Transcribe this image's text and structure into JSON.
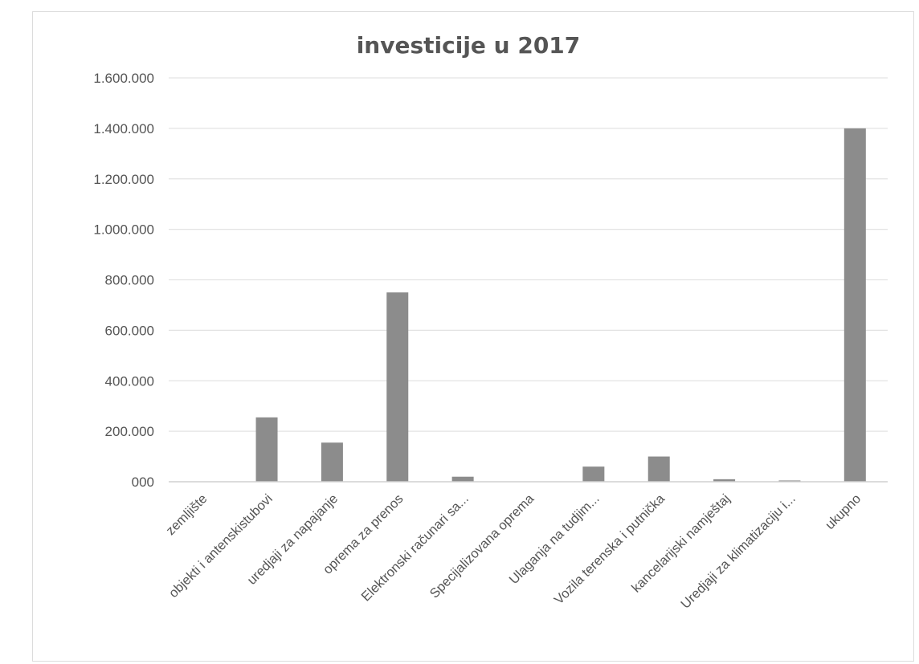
{
  "chart_data": {
    "type": "bar",
    "title": "investicije u 2017",
    "xlabel": "",
    "ylabel": "",
    "categories": [
      "zemljište",
      "objekti i antenskistubovi",
      "uredjaji za napajanje",
      "oprema za prenos",
      "Elektronski računari sa...",
      "Specijalizovana oprema",
      "Ulaganja na tudjim...",
      "Vozila terenska i putnička",
      "kancelarijski namještaj",
      "Uredjaji za klimatizaciju i...",
      "ukupno"
    ],
    "values": [
      0,
      255000,
      155000,
      750000,
      20000,
      0,
      60000,
      100000,
      10000,
      5000,
      1400000
    ],
    "ylim": [
      0,
      1600000
    ],
    "yticks": [
      0,
      200000,
      400000,
      600000,
      800000,
      1000000,
      1200000,
      1400000,
      1600000
    ],
    "ytick_labels": [
      "000",
      "200.000",
      "400.000",
      "600.000",
      "800.000",
      "1.000.000",
      "1.200.000",
      "1.400.000",
      "1.600.000"
    ],
    "grid": true,
    "legend": "none",
    "bar_color": "#8c8c8c"
  }
}
